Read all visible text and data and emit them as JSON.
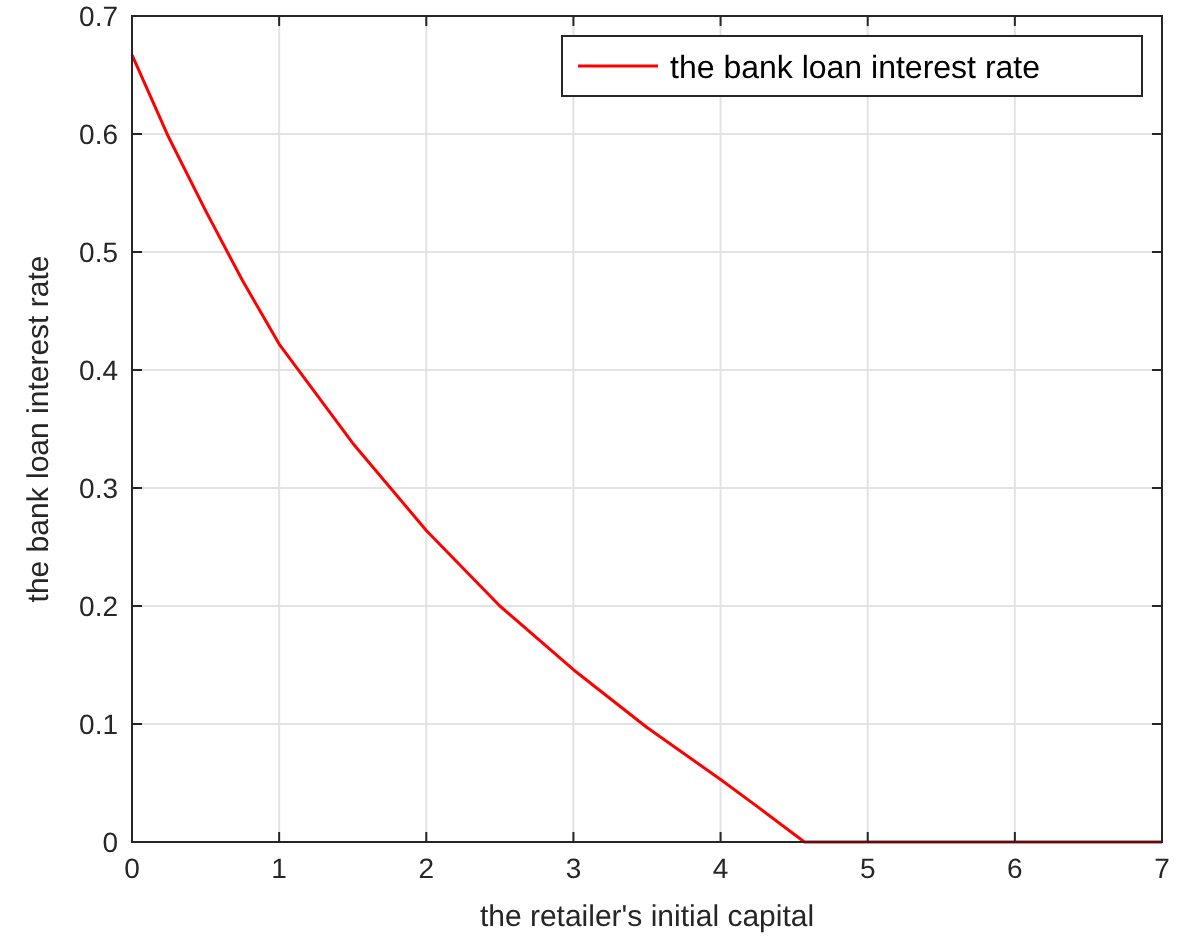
{
  "chart_data": {
    "type": "line",
    "xlabel": "the retailer's initial capital",
    "ylabel": "the bank loan interest rate",
    "x": [
      0,
      0.25,
      0.5,
      0.75,
      1,
      1.5,
      2,
      2.5,
      3,
      3.5,
      4,
      4.25,
      4.57,
      5,
      6,
      7
    ],
    "series": [
      {
        "name": "the bank loan interest rate",
        "color": "#ff0000",
        "values": [
          0.667,
          0.597,
          0.535,
          0.476,
          0.422,
          0.338,
          0.264,
          0.2,
          0.146,
          0.097,
          0.053,
          0.03,
          0,
          0,
          0,
          0
        ]
      }
    ],
    "xlim": [
      0,
      7
    ],
    "xticks": [
      0,
      1,
      2,
      3,
      4,
      5,
      6,
      7
    ],
    "ylim": [
      0,
      0.7
    ],
    "yticks": [
      0,
      0.1,
      0.2,
      0.3,
      0.4,
      0.5,
      0.6,
      0.7
    ],
    "grid": true,
    "legend": "top right",
    "marker": "none",
    "line_style": "solid"
  }
}
